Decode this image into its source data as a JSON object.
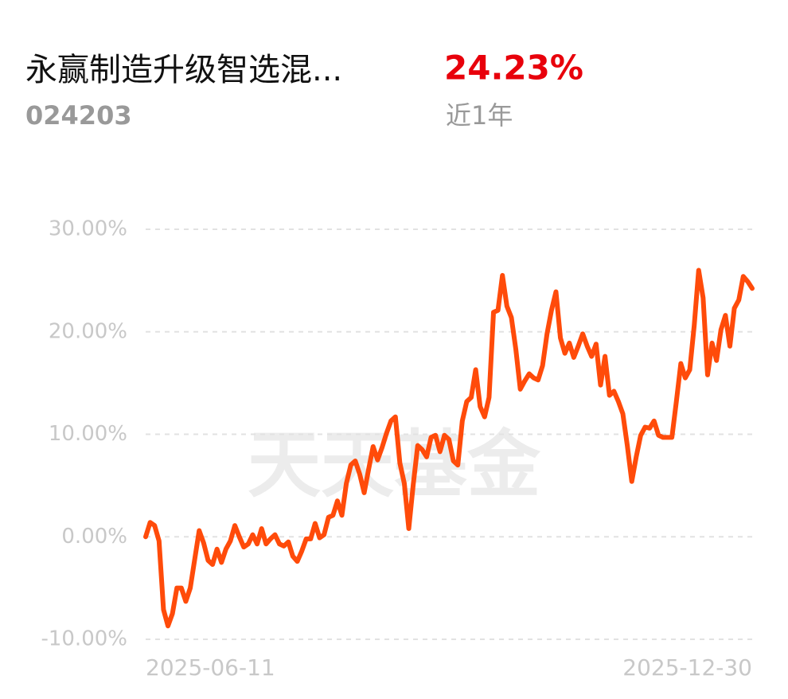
{
  "header": {
    "fund_name": "永赢制造升级智选混...",
    "fund_code": "024203",
    "return": "24.23%",
    "period": "近1年"
  },
  "chart_data": {
    "type": "line",
    "watermark": "天天基金",
    "categories": [
      "2025-06-11",
      null,
      null,
      null,
      null,
      null,
      null,
      null,
      null,
      null,
      null,
      null,
      null,
      null,
      null,
      null,
      null,
      null,
      null,
      null,
      null,
      null,
      null,
      null,
      null,
      null,
      null,
      null,
      null,
      null,
      null,
      null,
      null,
      null,
      null,
      null,
      null,
      null,
      null,
      null,
      null,
      null,
      null,
      null,
      null,
      null,
      null,
      null,
      null,
      null,
      null,
      null,
      null,
      null,
      null,
      null,
      null,
      null,
      null,
      null,
      null,
      null,
      null,
      null,
      null,
      null,
      null,
      null,
      null,
      null,
      null,
      null,
      null,
      null,
      null,
      null,
      null,
      null,
      null,
      null,
      null,
      null,
      null,
      null,
      null,
      null,
      null,
      null,
      null,
      null,
      null,
      null,
      null,
      null,
      null,
      null,
      null,
      null,
      null,
      null,
      null,
      null,
      null,
      null,
      null,
      null,
      null,
      null,
      null,
      null,
      null,
      null,
      null,
      null,
      null,
      null,
      null,
      null,
      null,
      null,
      null,
      null,
      null,
      null,
      null,
      null,
      null,
      null,
      null,
      null,
      null,
      null,
      null,
      null,
      null,
      null,
      "2025-12-30"
    ],
    "series": [
      {
        "color": "#ff4b0a",
        "values": [
          0,
          1.4,
          1.1,
          -0.4,
          -7.1,
          -8.7,
          -7.5,
          -5.0,
          -5.0,
          -6.3,
          -5.0,
          -2.2,
          0.6,
          -0.6,
          -2.3,
          -2.7,
          -1.2,
          -2.5,
          -1.2,
          -0.4,
          1.1,
          0.0,
          -1.0,
          -0.7,
          0.2,
          -0.7,
          0.8,
          -0.7,
          -0.2,
          0.2,
          -0.7,
          -0.9,
          -0.5,
          -1.9,
          -2.4,
          -1.4,
          -0.2,
          -0.2,
          1.3,
          -0.1,
          0.2,
          1.9,
          2.1,
          3.5,
          2.1,
          5.2,
          7.0,
          7.4,
          6.1,
          4.3,
          6.6,
          8.8,
          7.5,
          8.7,
          10.1,
          11.3,
          11.7,
          7.2,
          5.2,
          0.8,
          5.1,
          8.9,
          8.5,
          7.8,
          9.7,
          9.9,
          8.3,
          9.9,
          9.5,
          7.4,
          7.0,
          11.3,
          13.2,
          13.6,
          16.3,
          12.7,
          11.7,
          13.6,
          21.9,
          22.1,
          25.5,
          22.5,
          21.4,
          18.3,
          14.4,
          15.2,
          15.9,
          15.5,
          15.3,
          16.7,
          19.8,
          22.1,
          23.9,
          19.4,
          17.9,
          18.9,
          17.5,
          18.6,
          19.8,
          18.6,
          17.6,
          18.8,
          14.8,
          17.6,
          13.8,
          14.2,
          13.2,
          12.0,
          8.9,
          5.4,
          7.8,
          9.9,
          10.7,
          10.6,
          11.3,
          9.9,
          9.7,
          9.7,
          9.7,
          13.2,
          16.9,
          15.5,
          16.3,
          20.6,
          26.0,
          23.3,
          15.8,
          18.9,
          17.2,
          20.2,
          21.6,
          18.6,
          22.3,
          23.1,
          25.4,
          24.9,
          24.23
        ]
      }
    ],
    "ylim": [
      -10,
      30
    ],
    "yticks": [
      {
        "value": 30,
        "label": "30.00%"
      },
      {
        "value": 20,
        "label": "20.00%"
      },
      {
        "value": 10,
        "label": "10.00%"
      },
      {
        "value": 0,
        "label": "0.00%"
      },
      {
        "value": -10,
        "label": "-10.00%"
      }
    ],
    "grid": true
  }
}
